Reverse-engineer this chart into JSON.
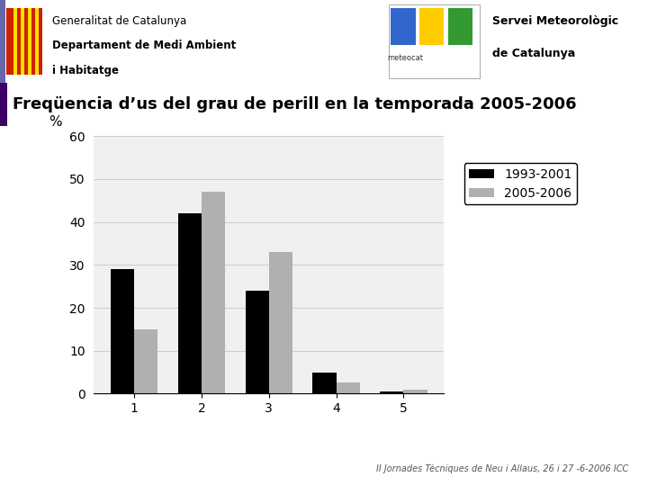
{
  "categories": [
    1,
    2,
    3,
    4,
    5
  ],
  "series1_label": "1993-2001",
  "series2_label": "2005-2006",
  "series1_values": [
    29,
    42,
    24,
    5,
    0.5
  ],
  "series2_values": [
    15,
    47,
    33,
    2.5,
    1
  ],
  "series1_color": "#000000",
  "series2_color": "#b0b0b0",
  "ylabel": "%",
  "ylim": [
    0,
    60
  ],
  "yticks": [
    0,
    10,
    20,
    30,
    40,
    50,
    60
  ],
  "title": "Freqüencia d’us del grau de perill en la temporada 2005-2006",
  "header_line1": "Generalitat de Catalunya",
  "header_line2": "Departament de Medi Ambient",
  "header_line3": "i Habitatge",
  "header_right1": "Servei Meteorològic",
  "header_right2": "de Catalunya",
  "footer": "II Jornades Tècniques de Neu i Allaus, 26 i 27 -6-2006 ICC",
  "bg_color": "#f0f0f0",
  "slide_bg": "#ffffff",
  "bar_width": 0.35,
  "grid_color": "#cccccc",
  "title_stripe_color": "#3d0066",
  "header_stripe_color": "#6666aa"
}
